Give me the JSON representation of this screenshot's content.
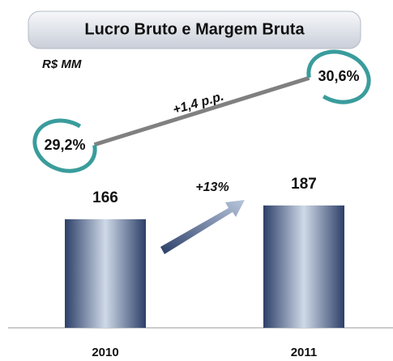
{
  "chart_data": {
    "type": "bar",
    "title": "Lucro Bruto e Margem Bruta",
    "subtitle": "R$ MM",
    "categories": [
      "2010",
      "2011"
    ],
    "series": [
      {
        "color": "#3b5583",
        "values": [
          166,
          187
        ]
      },
      {
        "axis": "y2",
        "color": "#808080",
        "values": [
          29.2,
          30.6
        ],
        "value_labels": [
          "29,2%",
          "30,6%"
        ]
      }
    ],
    "ylim": [
      0,
      240
    ],
    "y2lim": [
      28,
      32
    ],
    "annotations": [
      "+1,4 p.p.",
      "+13%"
    ]
  }
}
